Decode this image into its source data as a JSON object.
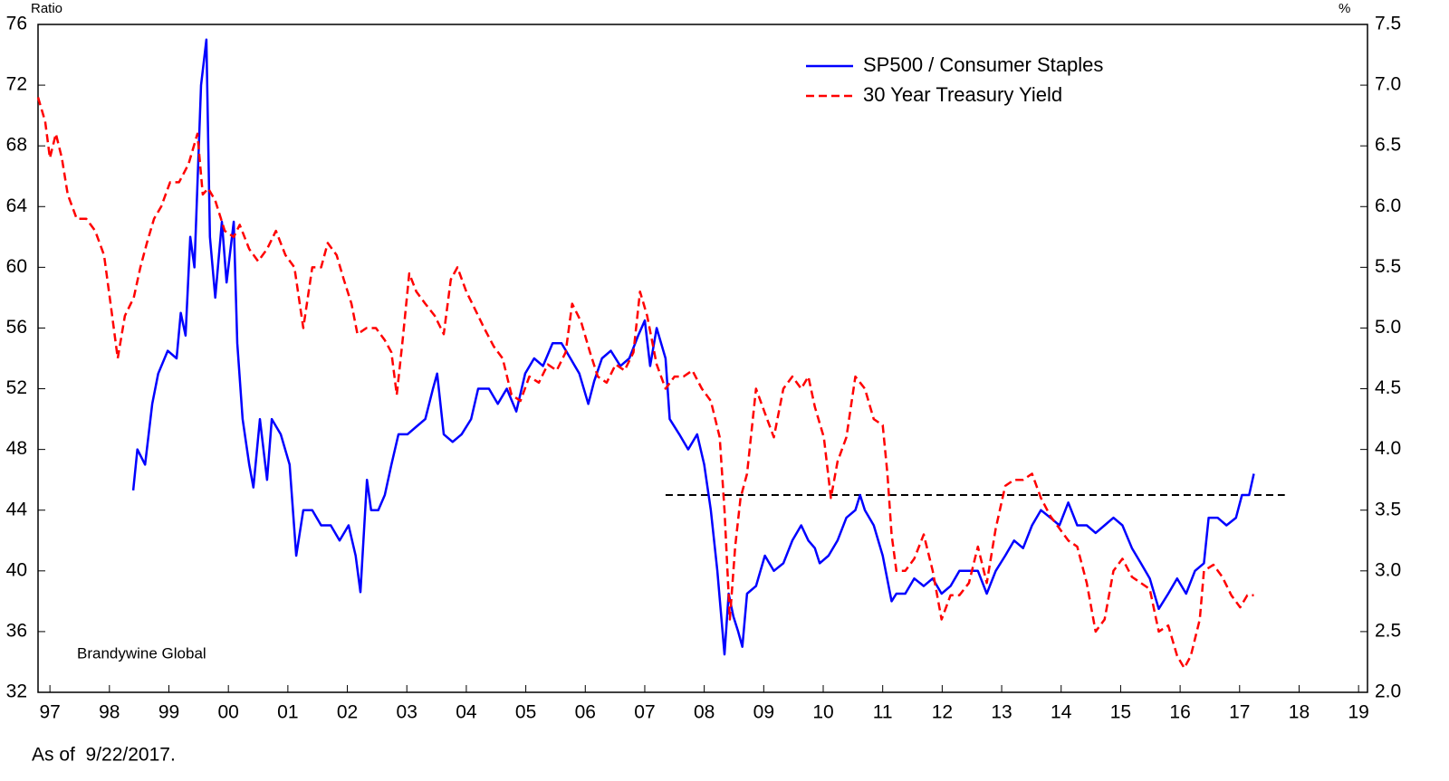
{
  "chart_data": {
    "type": "line",
    "y_label": "Ratio",
    "y2_label": "%",
    "annotation": "Brandywine Global",
    "footnote": "As of  9/22/2017.",
    "legend": "upper right",
    "xlim": [
      1997.3,
      2019.65
    ],
    "xticks": [
      {
        "value": 1997.5,
        "label": "97"
      },
      {
        "value": 1998.5,
        "label": "98"
      },
      {
        "value": 1999.5,
        "label": "99"
      },
      {
        "value": 2000.5,
        "label": "00"
      },
      {
        "value": 2001.5,
        "label": "01"
      },
      {
        "value": 2002.5,
        "label": "02"
      },
      {
        "value": 2003.5,
        "label": "03"
      },
      {
        "value": 2004.5,
        "label": "04"
      },
      {
        "value": 2005.5,
        "label": "05"
      },
      {
        "value": 2006.5,
        "label": "06"
      },
      {
        "value": 2007.5,
        "label": "07"
      },
      {
        "value": 2008.5,
        "label": "08"
      },
      {
        "value": 2009.5,
        "label": "09"
      },
      {
        "value": 2010.5,
        "label": "10"
      },
      {
        "value": 2011.5,
        "label": "11"
      },
      {
        "value": 2012.5,
        "label": "12"
      },
      {
        "value": 2013.5,
        "label": "13"
      },
      {
        "value": 2014.5,
        "label": "14"
      },
      {
        "value": 2015.5,
        "label": "15"
      },
      {
        "value": 2016.5,
        "label": "16"
      },
      {
        "value": 2017.5,
        "label": "17"
      },
      {
        "value": 2018.5,
        "label": "18"
      },
      {
        "value": 2019.5,
        "label": "19"
      }
    ],
    "ylim": [
      32,
      76
    ],
    "yticks": [
      32,
      36,
      40,
      44,
      48,
      52,
      56,
      60,
      64,
      68,
      72,
      76
    ],
    "y2lim": [
      2.0,
      7.5
    ],
    "y2ticks": [
      {
        "value": 2,
        "label": "2.0"
      },
      2.5,
      {
        "value": 3,
        "label": "3.0"
      },
      3.5,
      {
        "value": 4,
        "label": "4.0"
      },
      4.5,
      {
        "value": 5,
        "label": "5.0"
      },
      5.5,
      {
        "value": 6,
        "label": "6.0"
      },
      6.5,
      {
        "value": 7,
        "label": "7.0"
      },
      7.5
    ],
    "reference_line": {
      "y": 45,
      "x": [
        2007.85,
        2018.26
      ],
      "color": "#000000",
      "dashed": true
    },
    "series": [
      {
        "name": "SP500 / Consumer Staples",
        "color": "#0000ff",
        "dashed": false,
        "x": [
          1998.9,
          1998.97,
          1999.1,
          1999.22,
          1999.32,
          1999.48,
          1999.63,
          1999.7,
          1999.78,
          1999.86,
          1999.93,
          2000.04,
          2000.13,
          2000.19,
          2000.28,
          2000.39,
          2000.47,
          2000.59,
          2000.65,
          2000.74,
          2000.85,
          2000.92,
          2001.03,
          2001.15,
          2001.23,
          2001.38,
          2001.53,
          2001.64,
          2001.76,
          2001.91,
          2002.06,
          2002.22,
          2002.37,
          2002.52,
          2002.64,
          2002.72,
          2002.83,
          2002.9,
          2003.02,
          2003.13,
          2003.24,
          2003.36,
          2003.51,
          2003.66,
          2003.81,
          2003.94,
          2004.01,
          2004.12,
          2004.27,
          2004.42,
          2004.58,
          2004.7,
          2004.88,
          2005.03,
          2005.18,
          2005.34,
          2005.49,
          2005.64,
          2005.79,
          2005.95,
          2006.1,
          2006.25,
          2006.4,
          2006.55,
          2006.65,
          2006.78,
          2006.93,
          2007.09,
          2007.24,
          2007.39,
          2007.5,
          2007.59,
          2007.7,
          2007.85,
          2007.92,
          2008.08,
          2008.23,
          2008.38,
          2008.5,
          2008.61,
          2008.72,
          2008.84,
          2008.91,
          2008.99,
          2009.07,
          2009.14,
          2009.22,
          2009.37,
          2009.52,
          2009.67,
          2009.83,
          2009.98,
          2010.13,
          2010.25,
          2010.36,
          2010.44,
          2010.59,
          2010.74,
          2010.89,
          2011.04,
          2011.12,
          2011.2,
          2011.35,
          2011.5,
          2011.65,
          2011.73,
          2011.88,
          2012.03,
          2012.19,
          2012.34,
          2012.49,
          2012.64,
          2012.79,
          2012.95,
          2013.1,
          2013.25,
          2013.4,
          2013.56,
          2013.71,
          2013.86,
          2014.01,
          2014.16,
          2014.32,
          2014.47,
          2014.62,
          2014.77,
          2014.93,
          2015.08,
          2015.23,
          2015.38,
          2015.53,
          2015.69,
          2015.84,
          2015.99,
          2016.14,
          2016.3,
          2016.45,
          2016.6,
          2016.75,
          2016.9,
          2016.98,
          2017.13,
          2017.28,
          2017.44,
          2017.54,
          2017.66,
          2017.74
        ],
        "values": [
          45.3,
          48,
          47,
          51,
          53,
          54.5,
          54,
          57,
          55.5,
          62,
          60,
          72,
          75,
          62,
          58,
          63,
          59,
          63,
          55,
          50,
          47,
          45.5,
          50,
          46,
          50,
          49,
          47,
          41,
          44,
          44,
          43,
          43,
          42,
          43,
          41,
          38.6,
          46,
          44,
          44,
          45,
          47,
          49,
          49,
          49.5,
          50,
          52,
          53,
          49,
          48.5,
          49,
          50,
          52,
          52,
          51,
          52,
          50.5,
          53,
          54,
          53.5,
          55,
          55,
          54,
          53,
          51,
          52.5,
          54,
          54.5,
          53.5,
          54,
          55.5,
          56.5,
          53.5,
          56,
          54,
          50,
          49,
          48,
          49,
          47,
          44,
          40,
          34.5,
          38.5,
          37,
          36,
          35,
          38.5,
          39,
          41,
          40,
          40.5,
          42,
          43,
          42,
          41.5,
          40.5,
          41,
          42,
          43.5,
          44,
          45,
          44,
          43,
          41,
          38,
          38.5,
          38.5,
          39.5,
          39,
          39.5,
          38.5,
          39,
          40,
          40,
          40,
          38.5,
          40,
          41,
          42,
          41.5,
          43,
          44,
          43.5,
          43,
          44.5,
          43,
          43,
          42.5,
          43,
          43.5,
          43,
          41.5,
          40.5,
          39.5,
          37.5,
          38.5,
          39.5,
          38.5,
          40,
          40.5,
          43.5,
          43.5,
          43,
          43.5,
          45,
          45,
          46.4
        ]
      },
      {
        "name": "30 Year Treasury Yield",
        "color": "#ff0000",
        "dashed": true,
        "axis": "y2",
        "x": [
          1997.3,
          1997.42,
          1997.5,
          1997.6,
          1997.7,
          1997.8,
          1997.95,
          1998.11,
          1998.26,
          1998.41,
          1998.52,
          1998.64,
          1998.76,
          1998.91,
          1999.02,
          1999.13,
          1999.25,
          1999.37,
          1999.52,
          1999.67,
          1999.83,
          1999.98,
          2000.07,
          2000.16,
          2000.28,
          2000.44,
          2000.59,
          2000.69,
          2000.85,
          2001.0,
          2001.15,
          2001.3,
          2001.46,
          2001.61,
          2001.76,
          2001.91,
          2002.06,
          2002.17,
          2002.32,
          2002.44,
          2002.57,
          2002.67,
          2002.82,
          2002.98,
          2003.13,
          2003.24,
          2003.33,
          2003.43,
          2003.54,
          2003.66,
          2003.81,
          2003.97,
          2004.12,
          2004.24,
          2004.35,
          2004.5,
          2004.65,
          2004.8,
          2004.96,
          2005.11,
          2005.26,
          2005.41,
          2005.56,
          2005.72,
          2005.87,
          2006.02,
          2006.17,
          2006.28,
          2006.43,
          2006.58,
          2006.71,
          2006.86,
          2007.01,
          2007.16,
          2007.31,
          2007.42,
          2007.54,
          2007.7,
          2007.85,
          2008.0,
          2008.15,
          2008.3,
          2008.46,
          2008.61,
          2008.76,
          2008.84,
          2008.93,
          2009.02,
          2009.11,
          2009.22,
          2009.37,
          2009.52,
          2009.67,
          2009.83,
          2009.98,
          2010.13,
          2010.25,
          2010.36,
          2010.51,
          2010.63,
          2010.74,
          2010.89,
          2011.04,
          2011.2,
          2011.35,
          2011.5,
          2011.58,
          2011.65,
          2011.73,
          2011.88,
          2012.03,
          2012.19,
          2012.34,
          2012.49,
          2012.64,
          2012.79,
          2012.95,
          2013.1,
          2013.25,
          2013.4,
          2013.56,
          2013.71,
          2013.86,
          2014.01,
          2014.16,
          2014.32,
          2014.47,
          2014.62,
          2014.77,
          2014.93,
          2015.08,
          2015.23,
          2015.38,
          2015.53,
          2015.69,
          2015.84,
          2015.99,
          2016.14,
          2016.3,
          2016.45,
          2016.57,
          2016.68,
          2016.83,
          2016.9,
          2017.06,
          2017.21,
          2017.36,
          2017.51,
          2017.63,
          2017.74
        ],
        "values": [
          6.9,
          6.7,
          6.4,
          6.6,
          6.4,
          6.1,
          5.9,
          5.9,
          5.8,
          5.6,
          5.2,
          4.75,
          5.1,
          5.25,
          5.5,
          5.7,
          5.9,
          6.0,
          6.2,
          6.2,
          6.35,
          6.6,
          6.1,
          6.15,
          6.05,
          5.8,
          5.75,
          5.85,
          5.65,
          5.55,
          5.65,
          5.8,
          5.6,
          5.5,
          5.0,
          5.5,
          5.5,
          5.7,
          5.6,
          5.4,
          5.2,
          4.95,
          5.0,
          5.0,
          4.9,
          4.8,
          4.45,
          4.9,
          5.45,
          5.3,
          5.2,
          5.1,
          4.95,
          5.4,
          5.5,
          5.3,
          5.15,
          5.0,
          4.85,
          4.75,
          4.45,
          4.4,
          4.6,
          4.55,
          4.7,
          4.65,
          4.8,
          5.2,
          5.05,
          4.8,
          4.6,
          4.55,
          4.7,
          4.65,
          4.8,
          5.3,
          5.1,
          4.7,
          4.5,
          4.6,
          4.6,
          4.65,
          4.5,
          4.4,
          4.1,
          3.5,
          2.6,
          3.2,
          3.6,
          3.8,
          4.5,
          4.3,
          4.1,
          4.5,
          4.6,
          4.5,
          4.6,
          4.35,
          4.1,
          3.6,
          3.9,
          4.1,
          4.6,
          4.5,
          4.25,
          4.2,
          3.8,
          3.3,
          3.0,
          3.0,
          3.1,
          3.3,
          3.0,
          2.6,
          2.8,
          2.8,
          2.9,
          3.2,
          2.9,
          3.35,
          3.7,
          3.75,
          3.75,
          3.8,
          3.6,
          3.45,
          3.35,
          3.25,
          3.2,
          2.9,
          2.5,
          2.6,
          3.0,
          3.1,
          2.95,
          2.9,
          2.85,
          2.5,
          2.55,
          2.3,
          2.2,
          2.3,
          2.6,
          3.0,
          3.05,
          2.95,
          2.8,
          2.7,
          2.8,
          2.8
        ]
      }
    ]
  }
}
